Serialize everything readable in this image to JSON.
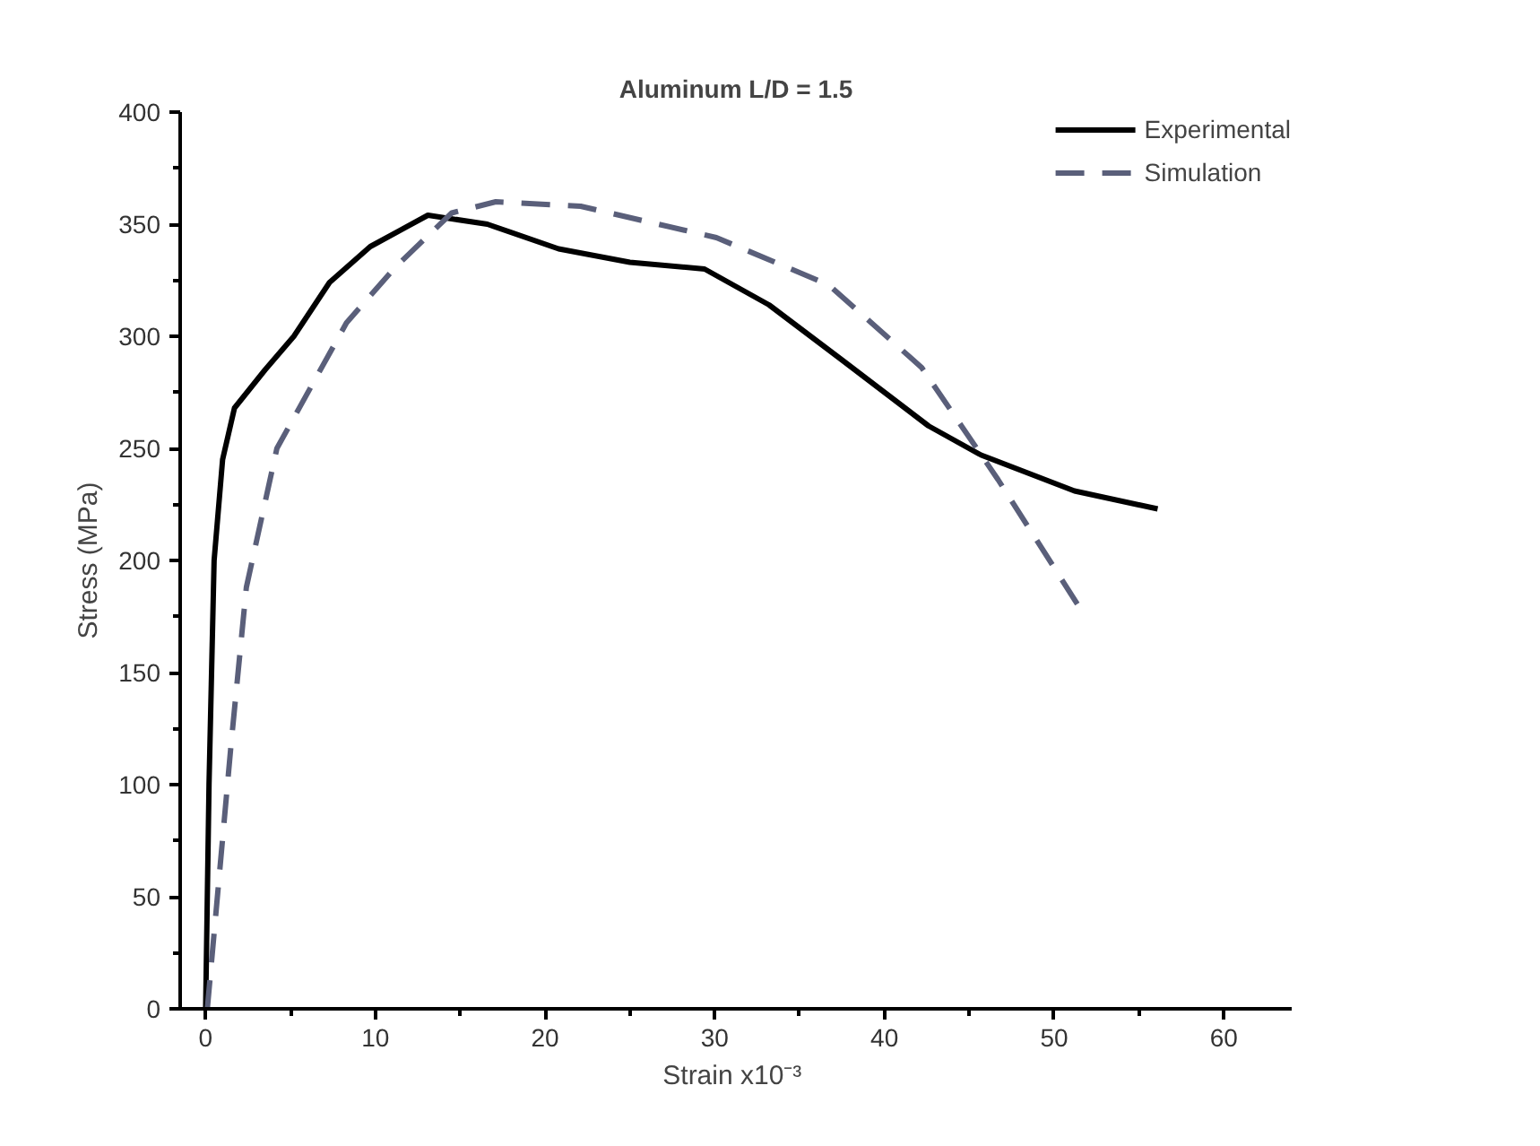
{
  "chart_data": {
    "type": "line",
    "title": "Aluminum L/D = 1.5",
    "xlabel": "Strain  x10⁻³",
    "ylabel": "Stress (MPa)",
    "xlim": [
      -1.5,
      64
    ],
    "ylim": [
      0,
      400
    ],
    "xticks": [
      0,
      10,
      20,
      30,
      40,
      50,
      60
    ],
    "yticks": [
      0,
      50,
      100,
      150,
      200,
      250,
      300,
      350,
      400
    ],
    "grid": false,
    "legend": "top right",
    "marker": "none",
    "series": [
      {
        "name": "Experimental",
        "color": "#000000",
        "line_style": "solid",
        "x": [
          0,
          0.2,
          0.5,
          1,
          1.7,
          3.5,
          5.2,
          7.3,
          9.7,
          13.1,
          16.6,
          20.8,
          25,
          29.4,
          33.2,
          37.4,
          42.6,
          45.7,
          51.2,
          56.1
        ],
        "values": [
          0,
          100,
          200,
          245,
          268,
          285,
          300,
          324,
          340,
          354,
          350,
          339,
          333,
          330,
          314,
          290,
          260,
          247,
          231,
          223
        ]
      },
      {
        "name": "Simulation",
        "color": "#5a5f7a",
        "line_style": "dashed",
        "x": [
          0.1,
          1.5,
          2.4,
          4.2,
          8.3,
          11.2,
          14.5,
          17.1,
          22.1,
          30.1,
          36.7,
          42.2,
          46.7,
          51.5
        ],
        "values": [
          0,
          118,
          188,
          250,
          306,
          331,
          355,
          360,
          358,
          344,
          323,
          286,
          236,
          179
        ]
      }
    ]
  }
}
